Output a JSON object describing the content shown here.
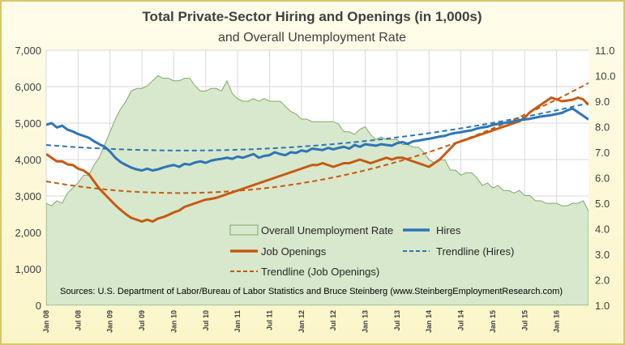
{
  "chart_data": {
    "type": "line",
    "title": "Total Private-Sector Hiring and Openings (in 1,000s)",
    "subtitle": "and Overall Unemployment Rate",
    "source": "Sources: U.S. Department of Labor/Bureau of Labor Statistics and Bruce Steinberg (www.SteinbergEmploymentResearch.com)",
    "x_tick_labels": [
      "Jan 08",
      "Jul 08",
      "Jan 09",
      "Jul 09",
      "Jan 10",
      "Jul 10",
      "Jan 11",
      "Jul 11",
      "Jan 12",
      "Jul 12",
      "Jan 13",
      "Jul 13",
      "Jan 14",
      "Jul 14",
      "Jan 15",
      "Jul 15",
      "Jan 16"
    ],
    "y_left": {
      "ylim": [
        0,
        7000
      ],
      "ticks": [
        "0",
        "1,000",
        "2,000",
        "3,000",
        "4,000",
        "5,000",
        "6,000",
        "7,000"
      ]
    },
    "y_right": {
      "ylim": [
        1.0,
        11.0
      ],
      "ticks": [
        "1.0",
        "2.0",
        "3.0",
        "4.0",
        "5.0",
        "6.0",
        "7.0",
        "8.0",
        "9.0",
        "10.0",
        "11.0"
      ]
    },
    "grid": true,
    "legend_placement": "center-bottom",
    "x_start": "2008-01",
    "series": [
      {
        "name": "Overall Unemployment Rate",
        "axis": "right",
        "style": "area",
        "color": "#7FA86C",
        "fill": "#D8E8CC",
        "values": [
          5.0,
          4.9,
          5.1,
          5.0,
          5.4,
          5.6,
          5.8,
          6.1,
          6.1,
          6.5,
          6.8,
          7.3,
          7.8,
          8.3,
          8.7,
          9.0,
          9.4,
          9.5,
          9.5,
          9.6,
          9.8,
          10.0,
          9.9,
          9.9,
          9.8,
          9.8,
          9.9,
          9.9,
          9.6,
          9.4,
          9.4,
          9.5,
          9.5,
          9.4,
          9.8,
          9.3,
          9.1,
          9.0,
          9.0,
          9.1,
          9.0,
          9.1,
          9.0,
          9.0,
          9.0,
          8.8,
          8.6,
          8.5,
          8.3,
          8.3,
          8.2,
          8.2,
          8.2,
          8.2,
          8.2,
          8.1,
          7.8,
          7.8,
          7.7,
          7.9,
          8.0,
          7.7,
          7.5,
          7.6,
          7.5,
          7.5,
          7.5,
          7.3,
          7.3,
          7.2,
          7.2,
          7.0,
          6.7,
          6.6,
          6.7,
          6.7,
          6.3,
          6.3,
          6.1,
          6.2,
          6.2,
          6.0,
          5.7,
          5.8,
          5.6,
          5.7,
          5.5,
          5.5,
          5.4,
          5.5,
          5.3,
          5.3,
          5.1,
          5.1,
          5.0,
          5.0,
          5.0,
          4.9,
          4.9,
          5.0,
          5.0,
          5.1,
          4.7
        ]
      },
      {
        "name": "Hires",
        "axis": "left",
        "style": "line",
        "color": "#2E75B6",
        "values": [
          4950,
          5000,
          4880,
          4930,
          4820,
          4770,
          4700,
          4650,
          4600,
          4500,
          4420,
          4350,
          4220,
          4050,
          3930,
          3850,
          3780,
          3730,
          3700,
          3750,
          3700,
          3730,
          3780,
          3820,
          3850,
          3800,
          3880,
          3860,
          3920,
          3950,
          3910,
          3970,
          4000,
          4020,
          4050,
          4020,
          4080,
          4050,
          4100,
          4150,
          4050,
          4100,
          4120,
          4200,
          4150,
          4120,
          4200,
          4180,
          4250,
          4220,
          4300,
          4280,
          4260,
          4320,
          4280,
          4320,
          4350,
          4300,
          4400,
          4350,
          4420,
          4400,
          4380,
          4420,
          4400,
          4380,
          4450,
          4480,
          4430,
          4500,
          4520,
          4550,
          4570,
          4600,
          4630,
          4650,
          4700,
          4730,
          4750,
          4780,
          4800,
          4850,
          4880,
          4900,
          4950,
          4980,
          5000,
          5020,
          5050,
          5080,
          5100,
          5120,
          5150,
          5180,
          5200,
          5220,
          5250,
          5280,
          5350,
          5400,
          5300,
          5200,
          5100
        ]
      },
      {
        "name": "Job Openings",
        "axis": "left",
        "style": "line",
        "color": "#C55A11",
        "values": [
          4150,
          4050,
          3950,
          3950,
          3870,
          3850,
          3750,
          3700,
          3600,
          3400,
          3200,
          3050,
          2900,
          2750,
          2620,
          2500,
          2400,
          2350,
          2300,
          2350,
          2300,
          2380,
          2420,
          2480,
          2550,
          2600,
          2700,
          2750,
          2800,
          2850,
          2900,
          2920,
          2950,
          3000,
          3050,
          3100,
          3150,
          3200,
          3250,
          3300,
          3350,
          3400,
          3450,
          3500,
          3550,
          3600,
          3650,
          3700,
          3750,
          3800,
          3850,
          3850,
          3900,
          3850,
          3800,
          3850,
          3900,
          3900,
          3950,
          4000,
          3950,
          3900,
          3950,
          4000,
          4050,
          4000,
          4050,
          4050,
          4000,
          3950,
          3900,
          3850,
          3800,
          3900,
          4000,
          4150,
          4300,
          4450,
          4500,
          4550,
          4600,
          4650,
          4700,
          4750,
          4800,
          4850,
          4900,
          4950,
          5000,
          5050,
          5150,
          5300,
          5400,
          5500,
          5600,
          5700,
          5650,
          5600,
          5620,
          5640,
          5700,
          5650,
          5500
        ]
      },
      {
        "name": "Trendline (Hires)",
        "axis": "left",
        "style": "dashed",
        "color": "#2E75B6",
        "values": [
          4400,
          5550
        ]
      },
      {
        "name": "Trendline (Job Openings)",
        "axis": "left",
        "style": "dashed",
        "color": "#C55A11",
        "values": [
          3400,
          6100
        ]
      }
    ]
  }
}
